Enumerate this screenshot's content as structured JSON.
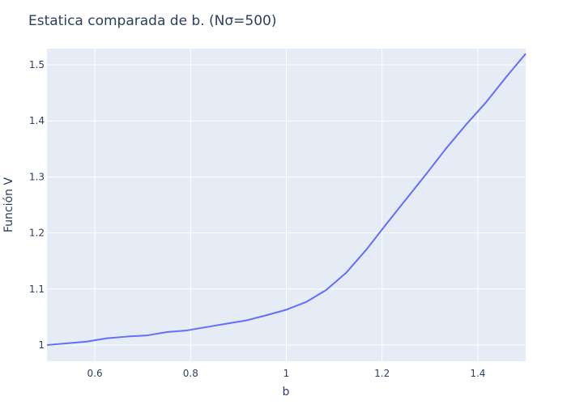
{
  "chart_data": {
    "type": "line",
    "title": "Estatica comparada de b. (Nσ=500)",
    "xlabel": "b",
    "ylabel": "Función V",
    "xlim": [
      0.5,
      1.5
    ],
    "ylim": [
      0.971,
      1.529
    ],
    "x_ticks": [
      0.6,
      0.8,
      1,
      1.2,
      1.4
    ],
    "x_tick_labels": [
      "0.6",
      "0.8",
      "1",
      "1.2",
      "1.4"
    ],
    "y_ticks": [
      1,
      1.1,
      1.2,
      1.3,
      1.4,
      1.5
    ],
    "y_tick_labels": [
      "1",
      "1.1",
      "1.2",
      "1.3",
      "1.4",
      "1.5"
    ],
    "grid": true,
    "colors": {
      "line": "#636efa",
      "plot_bg": "#e5ecf6",
      "grid": "#ffffff",
      "text": "#2a3f5f"
    },
    "series": [
      {
        "x": [
          0.5,
          0.542,
          0.583,
          0.625,
          0.667,
          0.708,
          0.75,
          0.792,
          0.833,
          0.875,
          0.917,
          0.958,
          1.0,
          1.042,
          1.083,
          1.125,
          1.167,
          1.208,
          1.25,
          1.292,
          1.333,
          1.375,
          1.417,
          1.458,
          1.5
        ],
        "values": [
          1.0,
          1.003,
          1.006,
          1.012,
          1.015,
          1.017,
          1.023,
          1.026,
          1.032,
          1.038,
          1.044,
          1.053,
          1.063,
          1.077,
          1.098,
          1.129,
          1.17,
          1.215,
          1.26,
          1.305,
          1.35,
          1.393,
          1.433,
          1.477,
          1.52
        ]
      }
    ]
  }
}
